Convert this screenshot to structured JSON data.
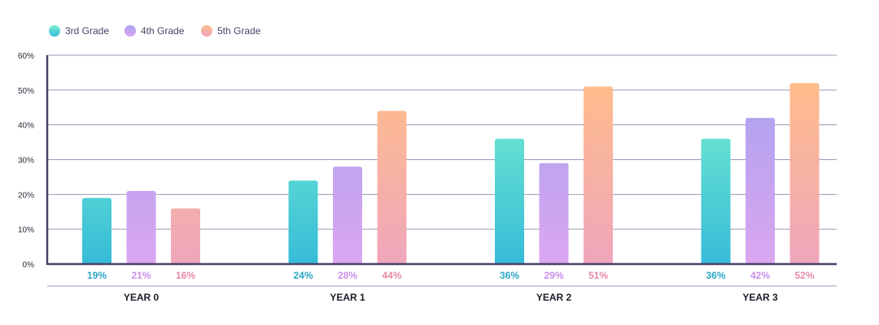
{
  "chart_data": {
    "type": "bar",
    "title": "",
    "xlabel": "",
    "ylabel": "",
    "categories": [
      "YEAR 0",
      "YEAR 1",
      "YEAR 2",
      "YEAR 3"
    ],
    "series": [
      {
        "name": "3rd Grade",
        "values": [
          19,
          24,
          36,
          36
        ],
        "labels": [
          "19%",
          "24%",
          "36%",
          "36%"
        ],
        "color_top": "#7af0cf",
        "color_bottom": "#36bcd8",
        "label_color": "#2aa7c4"
      },
      {
        "name": "4th Grade",
        "values": [
          21,
          28,
          29,
          42
        ],
        "labels": [
          "21%",
          "28%",
          "29%",
          "42%"
        ],
        "color_top": "#a9a2ef",
        "color_bottom": "#dba6f0",
        "label_color": "#c88ee8"
      },
      {
        "name": "5th Grade",
        "values": [
          16,
          44,
          51,
          52
        ],
        "labels": [
          "16%",
          "44%",
          "51%",
          "52%"
        ],
        "color_top": "#ffbd8a",
        "color_bottom": "#efa6bc",
        "label_color": "#e88aa4"
      }
    ],
    "ylim": [
      0,
      60
    ],
    "yticks": [
      0,
      10,
      20,
      30,
      40,
      50,
      60
    ],
    "ytick_labels": [
      "0%",
      "10%",
      "20%",
      "30%",
      "40%",
      "50%",
      "60%"
    ],
    "grid": true,
    "legend_position": "top-left",
    "axis_color": "#4a3f6b",
    "grid_color": "#9d97b5"
  }
}
